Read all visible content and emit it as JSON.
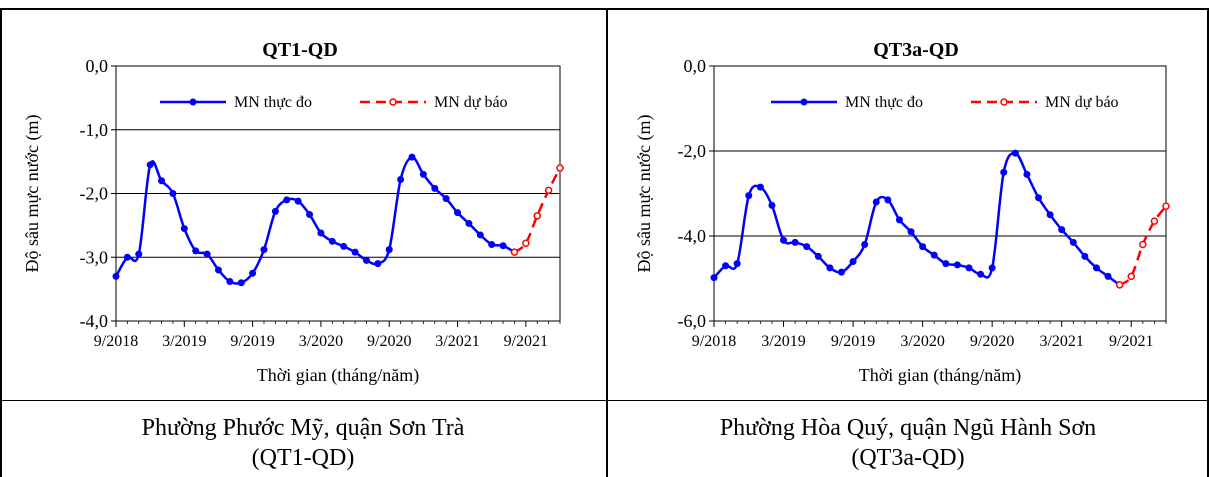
{
  "charts": [
    {
      "title": "QT1-QD",
      "ylabel": "Độ sâu mực nước (m)",
      "xlabel": "Thời gian  (tháng/năm)",
      "legend_observed": "MN thực đo",
      "legend_forecast": "MN dự báo",
      "yticks": [
        "0,0",
        "-1,0",
        "-2,0",
        "-3,0",
        "-4,0"
      ],
      "xticks": [
        "9/2018",
        "3/2019",
        "9/2019",
        "3/2020",
        "9/2020",
        "3/2021",
        "9/2021"
      ]
    },
    {
      "title": "QT3a-QD",
      "ylabel": "Độ sâu mực nước (m)",
      "xlabel": "Thời gian  (tháng/năm)",
      "legend_observed": "MN thực đo",
      "legend_forecast": "MN dự báo",
      "yticks": [
        "0,0",
        "-2,0",
        "-4,0",
        "-6,0"
      ],
      "xticks": [
        "9/2018",
        "3/2019",
        "9/2019",
        "3/2020",
        "9/2020",
        "3/2021",
        "9/2021"
      ]
    }
  ],
  "captions": [
    {
      "line1": "Phường Phước Mỹ, quận Sơn Trà",
      "line2": "(QT1-QD)"
    },
    {
      "line1": "Phường Hòa Quý, quận Ngũ Hành Sơn",
      "line2": "(QT3a-QD)"
    }
  ],
  "chart_data": [
    {
      "type": "line",
      "title": "QT1-QD",
      "xlabel": "Thời gian  (tháng/năm)",
      "ylabel": "Độ sâu mực nước (m)",
      "x_unit": "months since 9/2018",
      "ylim": [
        -4.0,
        0.0
      ],
      "xlim": [
        0,
        39
      ],
      "grid": "horizontal",
      "legend": "top",
      "colors": {
        "observed": "#0000ff",
        "forecast": "#ff0000"
      },
      "series": [
        {
          "name": "MN thực đo",
          "style": "solid",
          "marker": "filled",
          "x": [
            0,
            1,
            2,
            3,
            4,
            5,
            6,
            7,
            8,
            9,
            10,
            11,
            12,
            13,
            14,
            15,
            16,
            17,
            18,
            19,
            20,
            21,
            22,
            23,
            24,
            25,
            26,
            27,
            28,
            29,
            30,
            31,
            32,
            33,
            34,
            35
          ],
          "y": [
            -3.3,
            -3.0,
            -2.95,
            -1.55,
            -1.8,
            -2.0,
            -2.55,
            -2.9,
            -2.95,
            -3.2,
            -3.38,
            -3.4,
            -3.25,
            -2.88,
            -2.28,
            -2.1,
            -2.12,
            -2.33,
            -2.62,
            -2.75,
            -2.83,
            -2.92,
            -3.05,
            -3.1,
            -2.88,
            -1.78,
            -1.43,
            -1.7,
            -1.92,
            -2.08,
            -2.3,
            -2.47,
            -2.65,
            -2.8,
            -2.82,
            -2.92
          ]
        },
        {
          "name": "MN dự báo",
          "style": "dashed",
          "marker": "open",
          "x": [
            35,
            36,
            37,
            38,
            39
          ],
          "y": [
            -2.92,
            -2.78,
            -2.35,
            -1.95,
            -1.6
          ]
        }
      ]
    },
    {
      "type": "line",
      "title": "QT3a-QD",
      "xlabel": "Thời gian  (tháng/năm)",
      "ylabel": "Độ sâu mực nước (m)",
      "x_unit": "months since 9/2018",
      "ylim": [
        -6.0,
        0.0
      ],
      "xlim": [
        0,
        39
      ],
      "grid": "horizontal",
      "legend": "top",
      "colors": {
        "observed": "#0000ff",
        "forecast": "#ff0000"
      },
      "series": [
        {
          "name": "MN thực đo",
          "style": "solid",
          "marker": "filled",
          "x": [
            0,
            1,
            2,
            3,
            4,
            5,
            6,
            7,
            8,
            9,
            10,
            11,
            12,
            13,
            14,
            15,
            16,
            17,
            18,
            19,
            20,
            21,
            22,
            23,
            24,
            25,
            26,
            27,
            28,
            29,
            30,
            31,
            32,
            33,
            34,
            35
          ],
          "y": [
            -4.98,
            -4.7,
            -4.65,
            -3.05,
            -2.85,
            -3.28,
            -4.1,
            -4.15,
            -4.25,
            -4.48,
            -4.75,
            -4.85,
            -4.6,
            -4.2,
            -3.2,
            -3.15,
            -3.62,
            -3.9,
            -4.25,
            -4.45,
            -4.65,
            -4.68,
            -4.75,
            -4.9,
            -4.75,
            -2.5,
            -2.05,
            -2.55,
            -3.1,
            -3.5,
            -3.85,
            -4.15,
            -4.48,
            -4.75,
            -4.95,
            -5.15
          ]
        },
        {
          "name": "MN dự báo",
          "style": "dashed",
          "marker": "open",
          "x": [
            35,
            36,
            37,
            38,
            39
          ],
          "y": [
            -5.15,
            -4.95,
            -4.2,
            -3.65,
            -3.3
          ]
        }
      ]
    }
  ]
}
